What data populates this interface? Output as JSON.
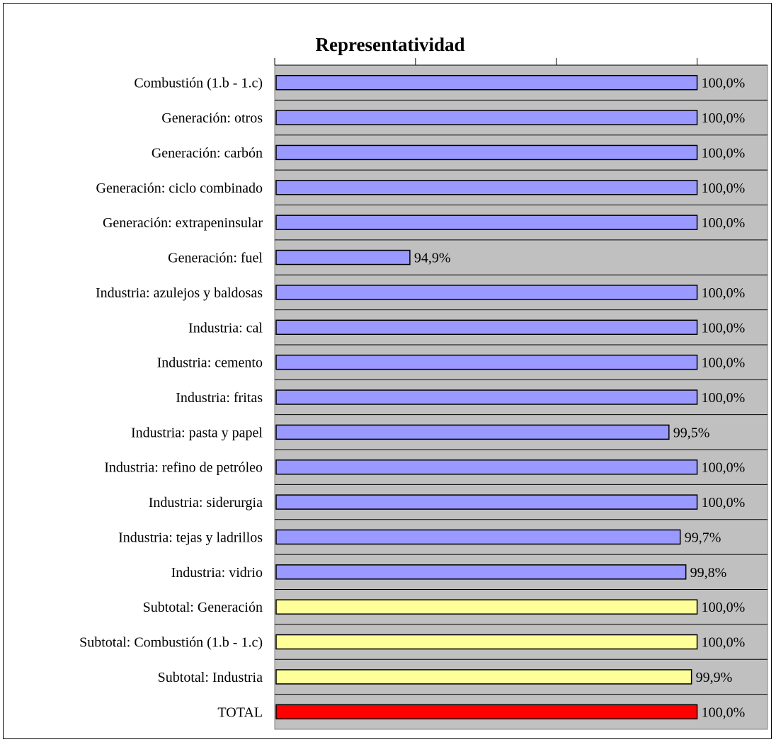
{
  "chart_data": {
    "type": "bar",
    "orientation": "horizontal",
    "title": "Representatividad",
    "categories": [
      "Combustión (1.b - 1.c)",
      "Generación: otros",
      "Generación: carbón",
      "Generación: ciclo combinado",
      "Generación: extrapeninsular",
      "Generación: fuel",
      "Industria: azulejos y baldosas",
      "Industria: cal",
      "Industria: cemento",
      "Industria: fritas",
      "Industria: pasta y papel",
      "Industria: refino de petróleo",
      "Industria: siderurgia",
      "Industria: tejas y ladrillos",
      "Industria: vidrio",
      "Subtotal: Generación",
      "Subtotal: Combustión (1.b - 1.c)",
      "Subtotal: Industria",
      "TOTAL"
    ],
    "values": [
      100.0,
      100.0,
      100.0,
      100.0,
      100.0,
      94.9,
      100.0,
      100.0,
      100.0,
      100.0,
      99.5,
      100.0,
      100.0,
      99.7,
      99.8,
      100.0,
      100.0,
      99.9,
      100.0
    ],
    "data_labels": [
      "100,0%",
      "100,0%",
      "100,0%",
      "100,0%",
      "100,0%",
      "94,9%",
      "100,0%",
      "100,0%",
      "100,0%",
      "100,0%",
      "99,5%",
      "100,0%",
      "100,0%",
      "99,7%",
      "99,8%",
      "100,0%",
      "100,0%",
      "99,9%",
      "100,0%"
    ],
    "bar_colors": [
      "#9999ff",
      "#9999ff",
      "#9999ff",
      "#9999ff",
      "#9999ff",
      "#9999ff",
      "#9999ff",
      "#9999ff",
      "#9999ff",
      "#9999ff",
      "#9999ff",
      "#9999ff",
      "#9999ff",
      "#9999ff",
      "#9999ff",
      "#ffff99",
      "#ffff99",
      "#ffff99",
      "#ff0000"
    ],
    "xlim": [
      92.5,
      101.25
    ],
    "x_ticks": [
      92.5,
      95,
      97.5,
      100
    ],
    "x_tick_labels_visible": false,
    "plot_background": "#c0c0c0",
    "grid": true,
    "legend": "none"
  }
}
